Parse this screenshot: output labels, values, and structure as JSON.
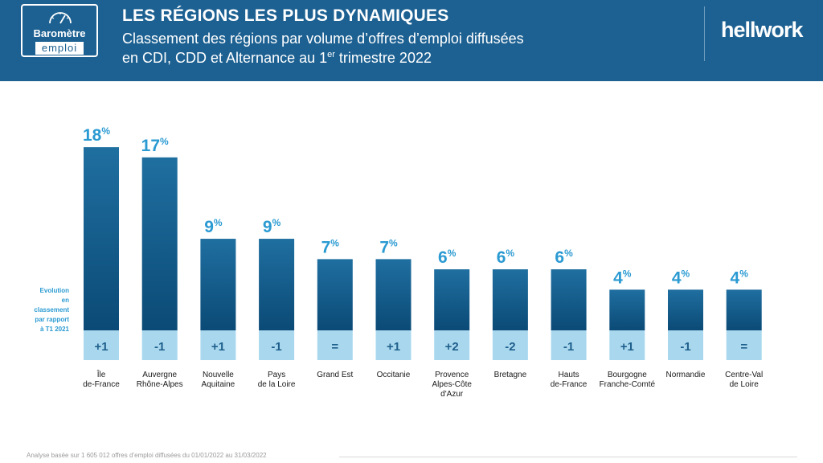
{
  "header": {
    "logo_line1": "Baromètre",
    "logo_line2": "emploi",
    "title": "LES RÉGIONS LES PLUS DYNAMIQUES",
    "subtitle_line1": "Classement des régions par volume d’offres d’emploi diffusées",
    "subtitle_line2_pre": "en CDI, CDD et Alternance au 1",
    "subtitle_sup": "er",
    "subtitle_line2_post": " trimestre 2022",
    "brand_pre": "hell",
    "brand_w": "w",
    "brand_o": "o",
    "brand_post": "rk"
  },
  "evolution_label": [
    "Evolution",
    "en classement",
    "par rapport",
    "à T1 2021"
  ],
  "footer": "Analyse basée sur 1 605 012 offres d’emploi diffusées du 01/01/2022 au 31/03/2022",
  "colors": {
    "header_bg": "#1d6192",
    "bar_top": "#1f6fa0",
    "bar_bottom": "#0b4a76",
    "evolution_band": "#a9d8ee",
    "value_label": "#2a9ad2",
    "text": "#1a1a1a"
  },
  "chart_data": {
    "type": "bar",
    "categories": [
      [
        "Île",
        "de-France"
      ],
      [
        "Auvergne",
        "Rhône-Alpes"
      ],
      [
        "Nouvelle",
        "Aquitaine"
      ],
      [
        "Pays",
        "de la Loire"
      ],
      [
        "Grand Est"
      ],
      [
        "Occitanie"
      ],
      [
        "Provence",
        "Alpes-Côte",
        "d'Azur"
      ],
      [
        "Bretagne"
      ],
      [
        "Hauts",
        "de-France"
      ],
      [
        "Bourgogne",
        "Franche-Comté"
      ],
      [
        "Normandie"
      ],
      [
        "Centre-Val",
        "de Loire"
      ]
    ],
    "values": [
      18,
      17,
      9,
      9,
      7,
      7,
      6,
      6,
      6,
      4,
      4,
      4
    ],
    "value_unit": "%",
    "evolution": [
      "+1",
      "-1",
      "+1",
      "-1",
      "=",
      "+1",
      "+2",
      "-2",
      "-1",
      "+1",
      "-1",
      "="
    ]
  }
}
